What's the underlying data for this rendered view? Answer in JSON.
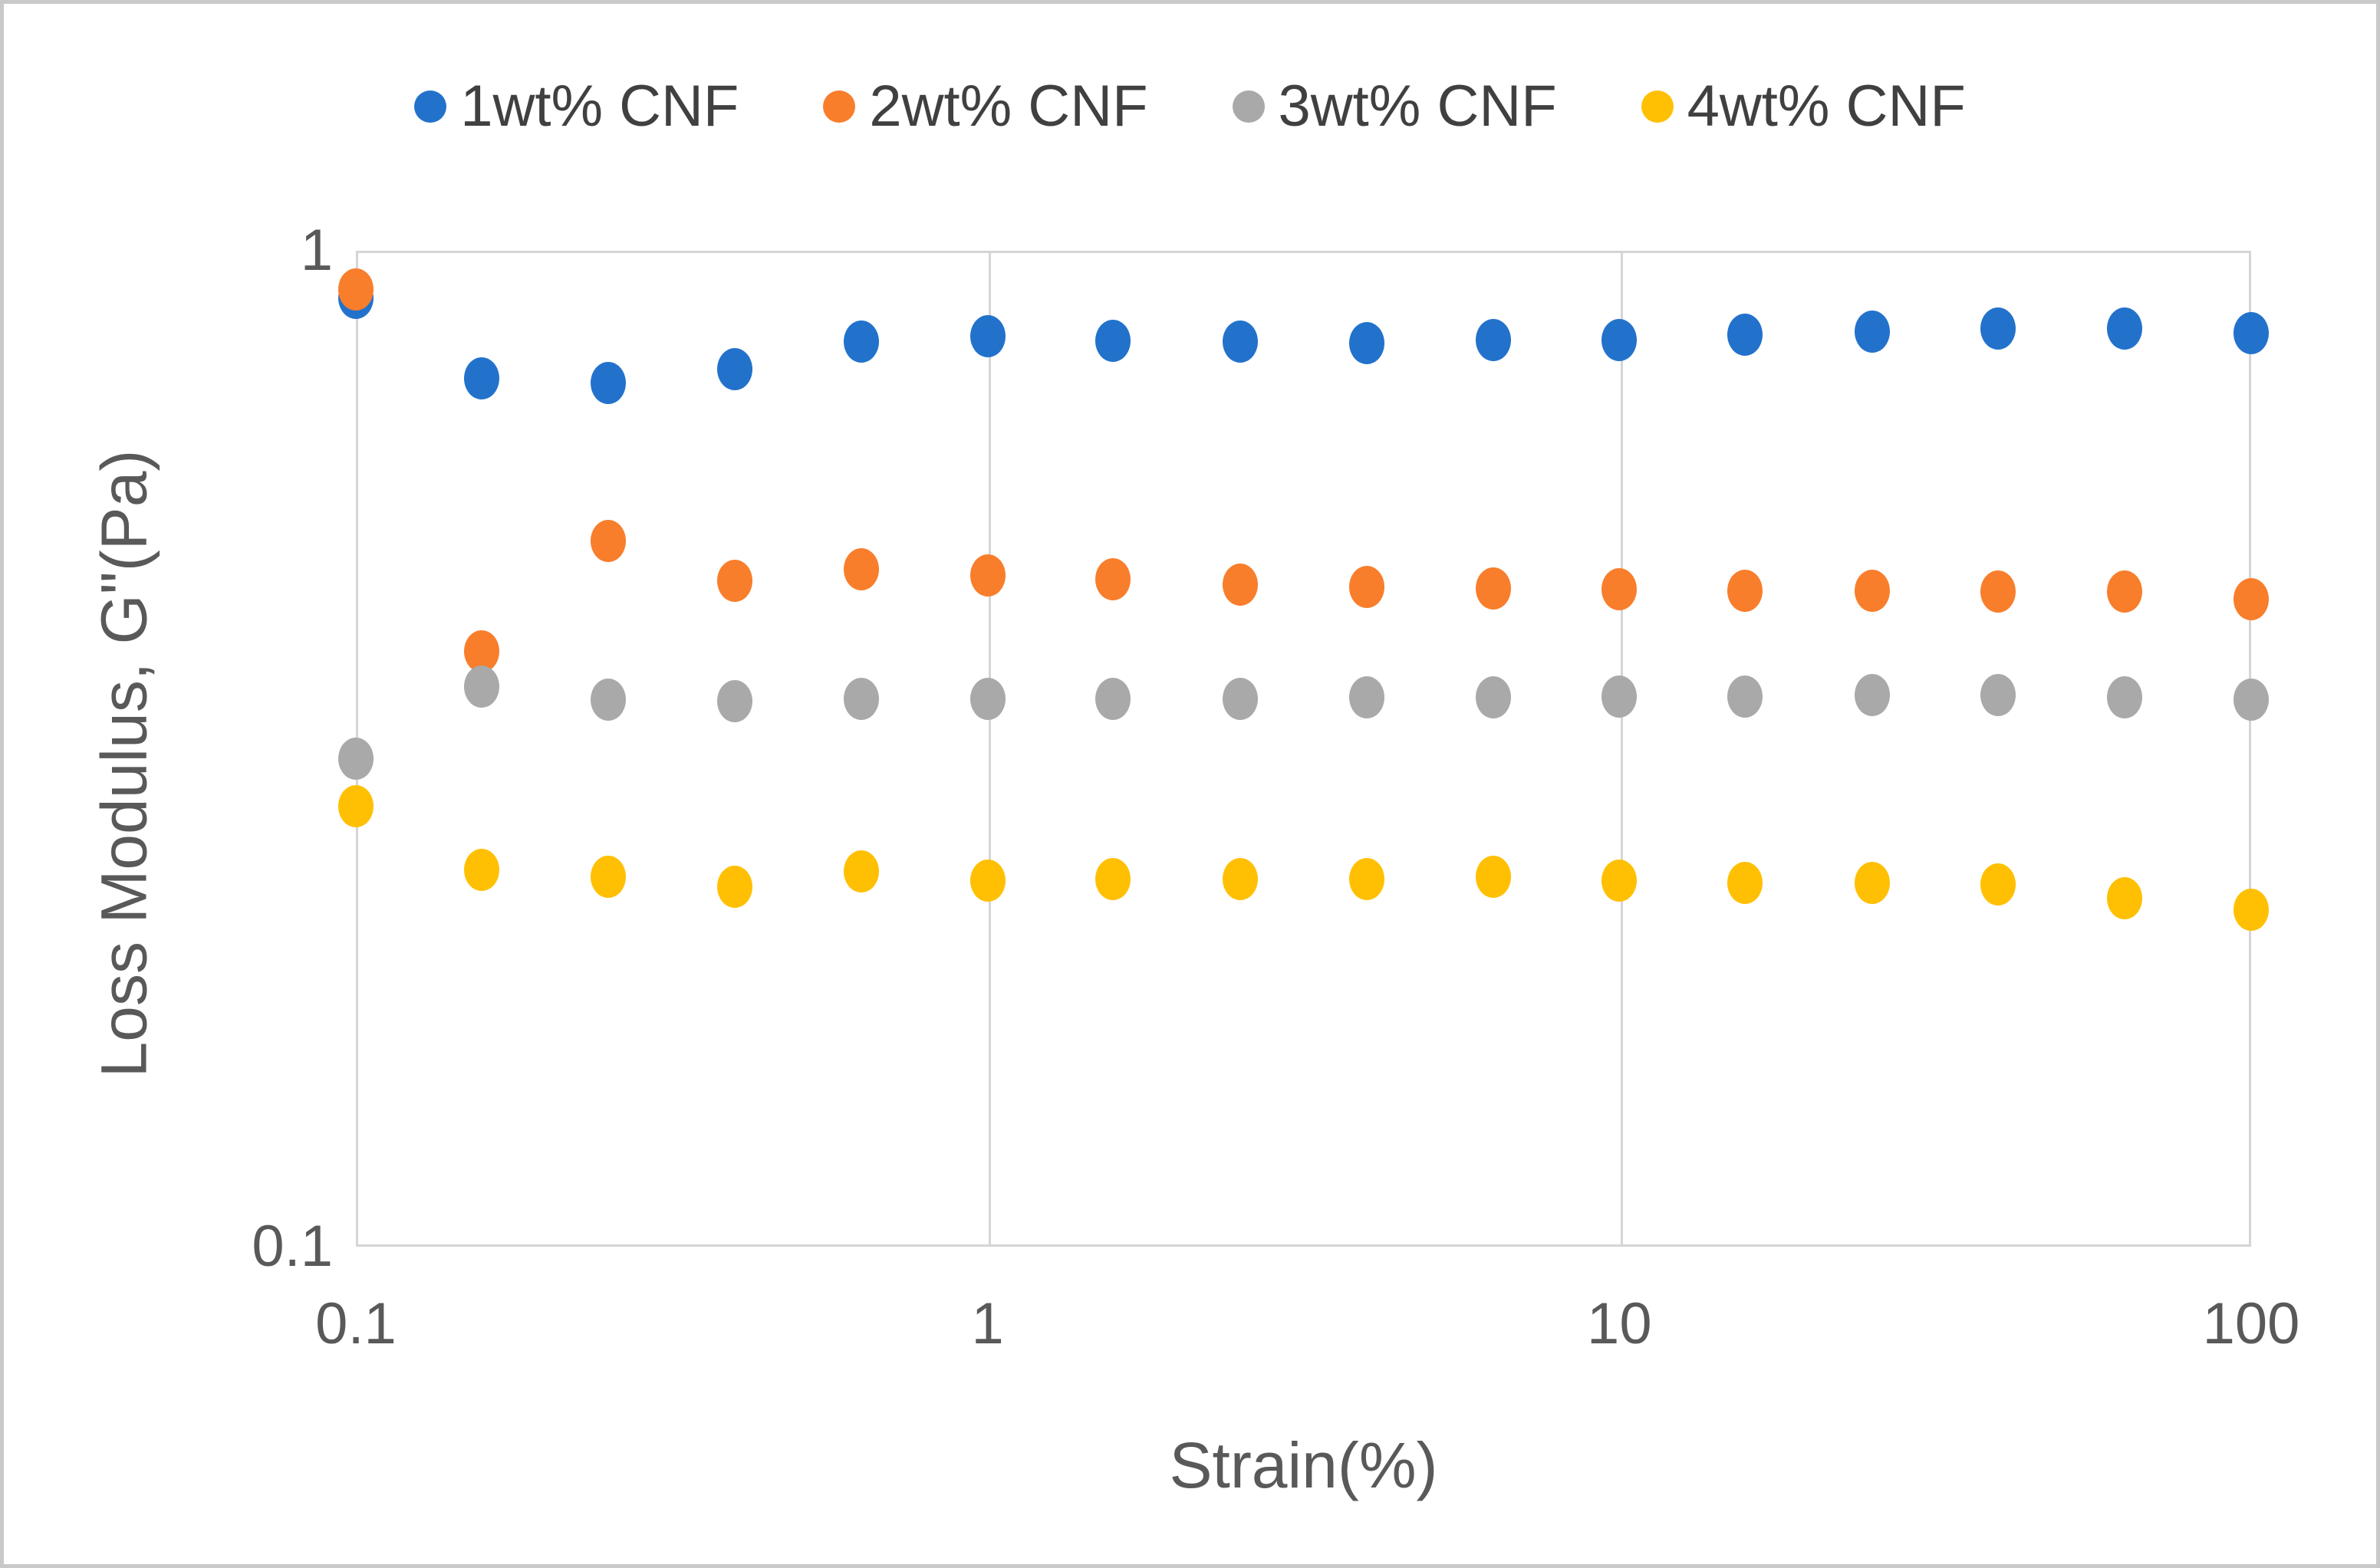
{
  "figure": {
    "background": "#FFFFFF",
    "border_color": "#C9C9C9",
    "text_color": "#595959",
    "gridline_color": "#D5D5D5"
  },
  "legend": {
    "position": "top-center",
    "items": [
      {
        "label": "1wt% CNF",
        "color": "#2272CC"
      },
      {
        "label": "2wt% CNF",
        "color": "#F87E2C"
      },
      {
        "label": "3wt% CNF",
        "color": "#A9A9A9"
      },
      {
        "label": "4wt% CNF",
        "color": "#FFC003"
      }
    ]
  },
  "axes": {
    "x": {
      "title": "Strain(%)",
      "scale": "log",
      "min": 0.1,
      "max": 100,
      "tick_labels": [
        "0.1",
        "1",
        "10",
        "100"
      ],
      "tick_values": [
        0.1,
        1,
        10,
        100
      ]
    },
    "y": {
      "title": "Loss Modulus, G\"(Pa)",
      "scale": "log",
      "min": 0.1,
      "max": 1,
      "tick_labels": [
        "1",
        "0.1"
      ],
      "tick_values": [
        1,
        0.1
      ]
    }
  },
  "chart_data": {
    "type": "scatter",
    "title": "",
    "xlabel": "Strain(%)",
    "ylabel": "Loss Modulus, G\"(Pa)",
    "x_scale": "log",
    "y_scale": "log",
    "xlim": [
      0.1,
      100
    ],
    "ylim": [
      0.1,
      1
    ],
    "grid_vertical_lines": [
      1,
      10
    ],
    "legend_position": "top",
    "x": [
      0.1,
      0.158,
      0.251,
      0.398,
      0.631,
      1,
      1.58,
      2.51,
      3.98,
      6.31,
      10,
      15.8,
      25.1,
      39.8,
      63.1,
      100
    ],
    "series": [
      {
        "name": "1wt% CNF",
        "color": "#2272CC",
        "values": [
          0.896,
          0.745,
          0.737,
          0.76,
          0.81,
          0.82,
          0.812,
          0.81,
          0.807,
          0.813,
          0.813,
          0.824,
          0.83,
          0.836,
          0.836,
          0.826
        ]
      },
      {
        "name": "2wt% CNF",
        "color": "#F87E2C",
        "values": [
          0.915,
          0.396,
          0.511,
          0.466,
          0.479,
          0.472,
          0.468,
          0.462,
          0.46,
          0.458,
          0.457,
          0.456,
          0.456,
          0.455,
          0.455,
          0.447
        ]
      },
      {
        "name": "3wt% CNF",
        "color": "#A9A9A9",
        "values": [
          0.309,
          0.365,
          0.354,
          0.353,
          0.355,
          0.355,
          0.355,
          0.355,
          0.356,
          0.356,
          0.357,
          0.357,
          0.358,
          0.358,
          0.356,
          0.354
        ]
      },
      {
        "name": "4wt% CNF",
        "color": "#FFC003",
        "values": [
          0.277,
          0.239,
          0.235,
          0.23,
          0.238,
          0.233,
          0.234,
          0.234,
          0.234,
          0.235,
          0.233,
          0.232,
          0.232,
          0.231,
          0.224,
          0.218
        ]
      }
    ]
  }
}
